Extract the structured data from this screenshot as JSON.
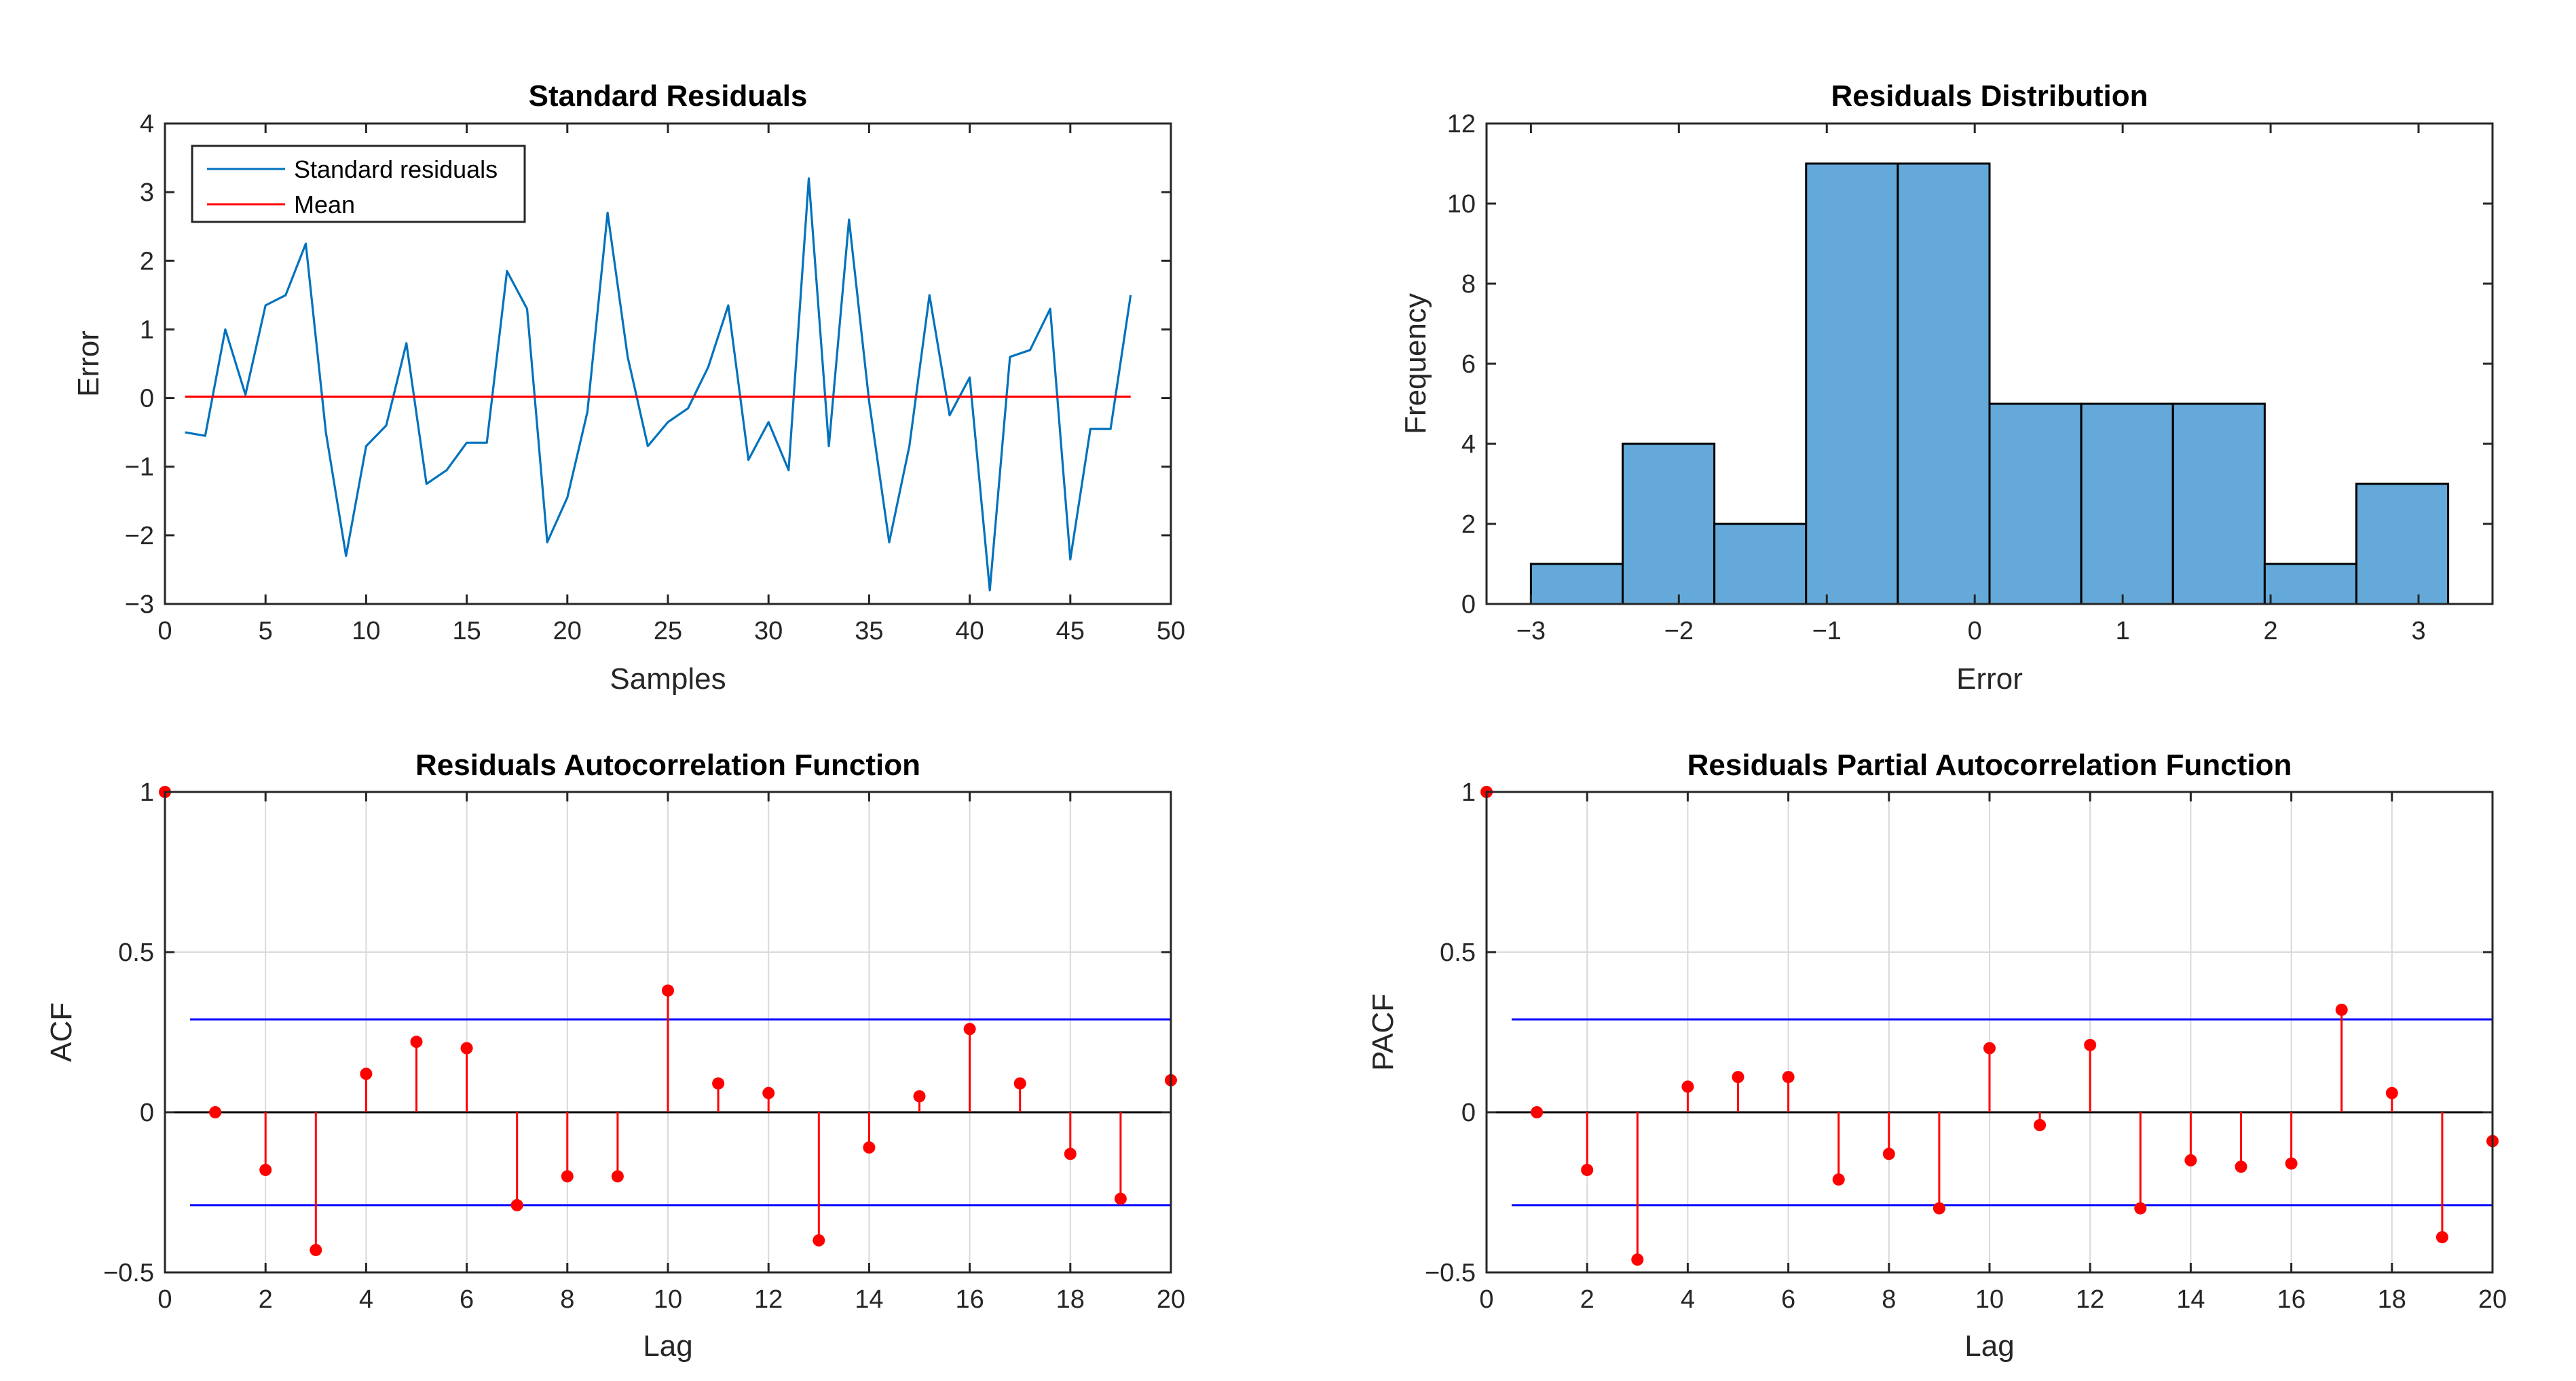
{
  "colors": {
    "residual_line": "#0072BD",
    "mean_line": "#FF0000",
    "hist_fill": "#64A9D9",
    "stem": "#FF0000",
    "confidence_band": "#0000FF",
    "axes": "#262626",
    "grid": "#D9D9D9"
  },
  "chart_data": [
    {
      "id": "residuals",
      "type": "line",
      "title": "Standard Residuals",
      "xlabel": "Samples",
      "ylabel": "Error",
      "xlim": [
        0,
        50
      ],
      "ylim": [
        -3,
        4
      ],
      "xticks": [
        0,
        5,
        10,
        15,
        20,
        25,
        30,
        35,
        40,
        45,
        50
      ],
      "yticks": [
        -3,
        -2,
        -1,
        0,
        1,
        2,
        3,
        4
      ],
      "ytick_labels": [
        "−3",
        "−2",
        "−1",
        "0",
        "1",
        "2",
        "3",
        "4"
      ],
      "grid": false,
      "legend": {
        "location": "top-left",
        "entries": [
          "Standard residuals",
          "Mean"
        ]
      },
      "series": [
        {
          "name": "Standard residuals",
          "x": [
            1,
            2,
            3,
            4,
            5,
            6,
            7,
            8,
            9,
            10,
            11,
            12,
            13,
            14,
            15,
            16,
            17,
            18,
            19,
            20,
            21,
            22,
            23,
            24,
            25,
            26,
            27,
            28,
            29,
            30,
            31,
            32,
            33,
            34,
            35,
            36,
            37,
            38,
            39,
            40,
            41,
            42,
            43,
            44,
            45,
            46,
            47,
            48
          ],
          "y": [
            -0.5,
            -0.55,
            1.0,
            0.05,
            1.35,
            1.5,
            2.25,
            -0.5,
            -2.3,
            -0.7,
            -0.4,
            0.8,
            -1.25,
            -1.05,
            -0.65,
            -0.65,
            1.85,
            1.3,
            -2.1,
            -1.45,
            -0.2,
            2.7,
            0.6,
            -0.7,
            -0.35,
            -0.15,
            0.45,
            1.35,
            -0.9,
            -0.35,
            -1.05,
            3.2,
            -0.7,
            2.6,
            -0.05,
            -2.1,
            -0.7,
            1.5,
            -0.25,
            0.3,
            -2.8,
            0.6,
            0.7,
            1.3,
            -2.35,
            -0.45,
            -0.45,
            1.5
          ]
        },
        {
          "name": "Mean",
          "x": [
            1,
            48
          ],
          "y": [
            0.02,
            0.02
          ]
        }
      ]
    },
    {
      "id": "histogram",
      "type": "bar",
      "title": "Residuals Distribution",
      "xlabel": "Error",
      "ylabel": "Frequency",
      "xlim": [
        -3.3,
        3.5
      ],
      "ylim": [
        0,
        12
      ],
      "xticks": [
        -3,
        -2,
        -1,
        0,
        1,
        2,
        3
      ],
      "xtick_labels": [
        "−3",
        "−2",
        "−1",
        "0",
        "1",
        "2",
        "3"
      ],
      "yticks": [
        0,
        2,
        4,
        6,
        8,
        10,
        12
      ],
      "grid": false,
      "bin_edges": [
        -3.0,
        -2.38,
        -1.76,
        -1.14,
        -0.52,
        0.1,
        0.72,
        1.34,
        1.96,
        2.58,
        3.2
      ],
      "values": [
        1,
        4,
        2,
        11,
        11,
        5,
        5,
        5,
        1,
        3
      ]
    },
    {
      "id": "acf",
      "type": "stem",
      "title": "Residuals Autocorrelation Function",
      "xlabel": "Lag",
      "ylabel": "ACF",
      "xlim": [
        0,
        20
      ],
      "ylim": [
        -0.5,
        1
      ],
      "xticks": [
        0,
        2,
        4,
        6,
        8,
        10,
        12,
        14,
        16,
        18,
        20
      ],
      "yticks": [
        -0.5,
        0,
        0.5,
        1
      ],
      "ytick_labels": [
        "−0.5",
        "0",
        "0.5",
        "1"
      ],
      "grid": true,
      "lags": [
        0,
        1,
        2,
        3,
        4,
        5,
        6,
        7,
        8,
        9,
        10,
        11,
        12,
        13,
        14,
        15,
        16,
        17,
        18,
        19,
        20
      ],
      "values": [
        1.0,
        0.0,
        -0.18,
        -0.43,
        0.12,
        0.22,
        0.2,
        -0.29,
        -0.2,
        -0.2,
        0.38,
        0.09,
        0.06,
        -0.4,
        -0.11,
        0.05,
        0.26,
        0.09,
        -0.13,
        -0.27,
        0.1
      ],
      "confidence_bounds": [
        0.29,
        -0.29
      ],
      "bounds_x": [
        0.5,
        20
      ]
    },
    {
      "id": "pacf",
      "type": "stem",
      "title": "Residuals Partial Autocorrelation Function",
      "xlabel": "Lag",
      "ylabel": "PACF",
      "xlim": [
        0,
        20
      ],
      "ylim": [
        -0.5,
        1
      ],
      "xticks": [
        0,
        2,
        4,
        6,
        8,
        10,
        12,
        14,
        16,
        18,
        20
      ],
      "yticks": [
        -0.5,
        0,
        0.5,
        1
      ],
      "ytick_labels": [
        "−0.5",
        "0",
        "0.5",
        "1"
      ],
      "grid": true,
      "lags": [
        0,
        1,
        2,
        3,
        4,
        5,
        6,
        7,
        8,
        9,
        10,
        11,
        12,
        13,
        14,
        15,
        16,
        17,
        18,
        19,
        20
      ],
      "values": [
        1.0,
        0.0,
        -0.18,
        -0.46,
        0.08,
        0.11,
        0.11,
        -0.21,
        -0.13,
        -0.3,
        0.2,
        -0.04,
        0.21,
        -0.3,
        -0.15,
        -0.17,
        -0.16,
        0.32,
        0.06,
        -0.39,
        -0.09
      ],
      "confidence_bounds": [
        0.29,
        -0.29
      ],
      "bounds_x": [
        0.5,
        20
      ]
    }
  ]
}
